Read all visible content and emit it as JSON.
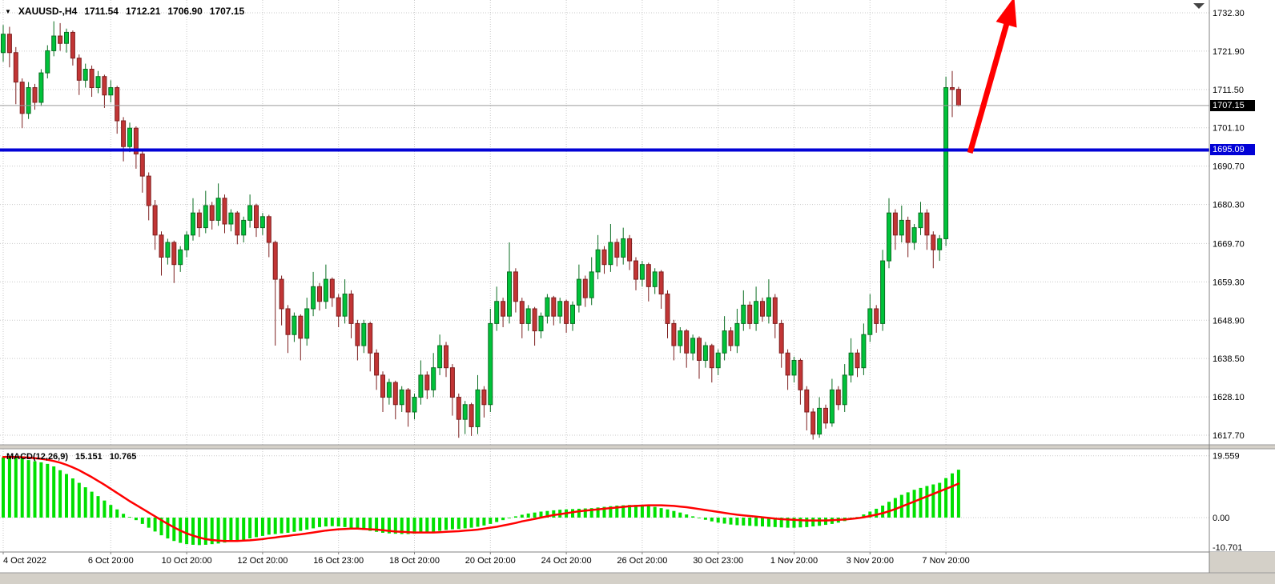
{
  "header": {
    "dropdown_icon": "▼",
    "symbol": "XAUUSD-,H4",
    "open": "1711.54",
    "high": "1712.21",
    "low": "1706.90",
    "close": "1707.15"
  },
  "macd": {
    "title": "MACD(12,26,9)",
    "value": "15.151",
    "signal": "10.765"
  },
  "price_axis": {
    "current_tag": "1707.15",
    "hline_tag": "1695.09",
    "labels": [
      "1732.30",
      "1721.90",
      "1711.50",
      "1701.10",
      "1690.70",
      "1680.30",
      "1669.70",
      "1659.30",
      "1648.90",
      "1638.50",
      "1628.10",
      "1617.70"
    ]
  },
  "macd_axis": {
    "labels": [
      "19.559",
      "0.00",
      "-10.701"
    ],
    "values": [
      19.559,
      0,
      -10.701
    ]
  },
  "time_axis": {
    "labels": [
      {
        "i": 0,
        "t": "4 Oct 2022"
      },
      {
        "i": 17,
        "t": "6 Oct 20:00"
      },
      {
        "i": 29,
        "t": "10 Oct 20:00"
      },
      {
        "i": 41,
        "t": "12 Oct 20:00"
      },
      {
        "i": 53,
        "t": "16 Oct 23:00"
      },
      {
        "i": 65,
        "t": "18 Oct 20:00"
      },
      {
        "i": 77,
        "t": "20 Oct 20:00"
      },
      {
        "i": 89,
        "t": "24 Oct 20:00"
      },
      {
        "i": 101,
        "t": "26 Oct 20:00"
      },
      {
        "i": 113,
        "t": "30 Oct 23:00"
      },
      {
        "i": 125,
        "t": "1 Nov 20:00"
      },
      {
        "i": 137,
        "t": "3 Nov 20:00"
      },
      {
        "i": 149,
        "t": "7 Nov 20:00"
      }
    ]
  },
  "chart_data": {
    "type": "candlestick",
    "title": "XAUUSD- H4 with MACD(12,26,9)",
    "price_gridlines": [
      1732.3,
      1721.9,
      1711.5,
      1701.1,
      1690.7,
      1680.3,
      1669.7,
      1659.3,
      1648.9,
      1638.5,
      1628.1,
      1617.7
    ],
    "candles": [
      [
        1721.5,
        1729,
        1719,
        1726.5
      ],
      [
        1726.5,
        1728.5,
        1717.5,
        1721.5
      ],
      [
        1721.5,
        1723,
        1707.5,
        1713.5
      ],
      [
        1713.5,
        1714.5,
        1701,
        1705
      ],
      [
        1705,
        1713.5,
        1703.5,
        1712
      ],
      [
        1712,
        1713,
        1706,
        1708
      ],
      [
        1708,
        1717,
        1707,
        1716
      ],
      [
        1716,
        1723.5,
        1714.5,
        1722
      ],
      [
        1722,
        1730,
        1720.5,
        1726
      ],
      [
        1726,
        1729.5,
        1722,
        1724
      ],
      [
        1724,
        1728,
        1721.5,
        1727
      ],
      [
        1727,
        1727.5,
        1718,
        1720
      ],
      [
        1720,
        1721,
        1710,
        1714
      ],
      [
        1714,
        1718.5,
        1712,
        1717
      ],
      [
        1717,
        1718,
        1709.5,
        1712
      ],
      [
        1712,
        1716.5,
        1710.5,
        1715
      ],
      [
        1715,
        1715.5,
        1706.5,
        1710
      ],
      [
        1710,
        1714,
        1708,
        1712
      ],
      [
        1712,
        1712.5,
        1699.5,
        1703
      ],
      [
        1703,
        1704,
        1692,
        1696
      ],
      [
        1696,
        1702.5,
        1694.5,
        1701
      ],
      [
        1701,
        1701.5,
        1690,
        1694
      ],
      [
        1694,
        1695,
        1683.5,
        1688
      ],
      [
        1688,
        1689,
        1676,
        1680
      ],
      [
        1680,
        1681.5,
        1668,
        1672
      ],
      [
        1672,
        1673,
        1661,
        1666
      ],
      [
        1666,
        1671,
        1664,
        1670
      ],
      [
        1670,
        1670.5,
        1659,
        1664
      ],
      [
        1664,
        1669,
        1662,
        1668
      ],
      [
        1668,
        1673,
        1666,
        1672
      ],
      [
        1672,
        1682,
        1670.5,
        1678
      ],
      [
        1678,
        1679,
        1671.5,
        1674
      ],
      [
        1674,
        1684,
        1672.5,
        1680
      ],
      [
        1680,
        1681,
        1673.5,
        1676
      ],
      [
        1676,
        1686,
        1674.5,
        1682
      ],
      [
        1682,
        1683,
        1672.5,
        1675
      ],
      [
        1675,
        1679,
        1673,
        1678
      ],
      [
        1678,
        1678.5,
        1669.5,
        1672
      ],
      [
        1672,
        1677,
        1670,
        1676
      ],
      [
        1676,
        1683,
        1674,
        1680
      ],
      [
        1680,
        1680.5,
        1671.5,
        1674
      ],
      [
        1674,
        1678,
        1672,
        1677
      ],
      [
        1677,
        1677.5,
        1666,
        1670
      ],
      [
        1670,
        1670.5,
        1642,
        1660
      ],
      [
        1660,
        1661,
        1647.5,
        1652
      ],
      [
        1652,
        1653,
        1640,
        1645
      ],
      [
        1645,
        1651,
        1643,
        1650
      ],
      [
        1650,
        1650.5,
        1638,
        1644
      ],
      [
        1644,
        1655,
        1642,
        1652
      ],
      [
        1652,
        1662,
        1650,
        1658
      ],
      [
        1658,
        1659,
        1651.5,
        1654
      ],
      [
        1654,
        1664,
        1652,
        1660
      ],
      [
        1660,
        1660.5,
        1652.5,
        1655
      ],
      [
        1655,
        1656,
        1647,
        1650
      ],
      [
        1650,
        1660,
        1648,
        1656
      ],
      [
        1656,
        1657,
        1644,
        1648
      ],
      [
        1648,
        1649,
        1638,
        1642
      ],
      [
        1642,
        1649,
        1640,
        1648
      ],
      [
        1648,
        1648.5,
        1635,
        1640
      ],
      [
        1640,
        1641,
        1630,
        1634
      ],
      [
        1634,
        1635,
        1624,
        1628
      ],
      [
        1628,
        1633,
        1626,
        1632
      ],
      [
        1632,
        1632.5,
        1622,
        1626
      ],
      [
        1626,
        1631,
        1624,
        1630
      ],
      [
        1630,
        1630.5,
        1620,
        1624
      ],
      [
        1624,
        1629,
        1622,
        1628
      ],
      [
        1628,
        1638,
        1626,
        1634
      ],
      [
        1634,
        1635,
        1627.5,
        1630
      ],
      [
        1630,
        1640,
        1628,
        1636
      ],
      [
        1636,
        1645,
        1634,
        1642
      ],
      [
        1642,
        1643,
        1633.5,
        1636
      ],
      [
        1636,
        1637,
        1623,
        1628
      ],
      [
        1628,
        1629,
        1617,
        1622
      ],
      [
        1622,
        1627,
        1618,
        1626
      ],
      [
        1626,
        1626.5,
        1617.5,
        1620
      ],
      [
        1620,
        1634,
        1618,
        1630
      ],
      [
        1630,
        1631,
        1622.5,
        1626
      ],
      [
        1626,
        1652,
        1624,
        1648
      ],
      [
        1648,
        1658,
        1646,
        1654
      ],
      [
        1654,
        1655,
        1647,
        1650
      ],
      [
        1650,
        1670,
        1648,
        1662
      ],
      [
        1662,
        1663,
        1651,
        1654
      ],
      [
        1654,
        1655,
        1644,
        1648
      ],
      [
        1648,
        1653,
        1646,
        1652
      ],
      [
        1652,
        1652.5,
        1642,
        1646
      ],
      [
        1646,
        1651,
        1644,
        1650
      ],
      [
        1650,
        1656,
        1648,
        1655
      ],
      [
        1655,
        1655.5,
        1647.5,
        1650
      ],
      [
        1650,
        1655,
        1648,
        1654
      ],
      [
        1654,
        1654.5,
        1645.5,
        1648
      ],
      [
        1648,
        1654,
        1646,
        1653
      ],
      [
        1653,
        1664,
        1651,
        1660
      ],
      [
        1660,
        1661,
        1652.5,
        1655
      ],
      [
        1655,
        1666,
        1653,
        1662
      ],
      [
        1662,
        1672,
        1660,
        1668
      ],
      [
        1668,
        1669,
        1661.5,
        1664
      ],
      [
        1664,
        1675,
        1662,
        1670
      ],
      [
        1670,
        1671,
        1663.5,
        1666
      ],
      [
        1666,
        1674,
        1664,
        1671
      ],
      [
        1671,
        1672,
        1662.5,
        1665
      ],
      [
        1665,
        1666,
        1657,
        1660
      ],
      [
        1660,
        1665,
        1658,
        1664
      ],
      [
        1664,
        1664.5,
        1654,
        1658
      ],
      [
        1658,
        1663,
        1656,
        1662
      ],
      [
        1662,
        1662.5,
        1652,
        1656
      ],
      [
        1656,
        1657,
        1644,
        1648
      ],
      [
        1648,
        1649,
        1638,
        1642
      ],
      [
        1642,
        1647,
        1640,
        1646
      ],
      [
        1646,
        1646.5,
        1636,
        1640
      ],
      [
        1640,
        1645,
        1638,
        1644
      ],
      [
        1644,
        1644.5,
        1633,
        1638
      ],
      [
        1638,
        1643,
        1636,
        1642
      ],
      [
        1642,
        1642.5,
        1632,
        1636
      ],
      [
        1636,
        1641,
        1634,
        1640
      ],
      [
        1640,
        1650,
        1638,
        1646
      ],
      [
        1646,
        1647,
        1640.5,
        1642
      ],
      [
        1642,
        1652,
        1640,
        1648
      ],
      [
        1648,
        1657,
        1646,
        1653
      ],
      [
        1653,
        1654,
        1646.5,
        1648
      ],
      [
        1648,
        1658,
        1646,
        1654
      ],
      [
        1654,
        1655,
        1648.5,
        1650
      ],
      [
        1650,
        1660,
        1648,
        1655
      ],
      [
        1655,
        1656,
        1644,
        1648
      ],
      [
        1648,
        1649,
        1636,
        1640
      ],
      [
        1640,
        1641,
        1630,
        1634
      ],
      [
        1634,
        1639,
        1632,
        1638
      ],
      [
        1638,
        1638.5,
        1626,
        1630
      ],
      [
        1630,
        1631,
        1619,
        1624
      ],
      [
        1624,
        1625,
        1616.5,
        1618
      ],
      [
        1618,
        1628,
        1617,
        1625
      ],
      [
        1625,
        1626,
        1619.5,
        1621
      ],
      [
        1621,
        1633,
        1620,
        1630
      ],
      [
        1630,
        1631,
        1624.5,
        1626
      ],
      [
        1626,
        1637,
        1624,
        1634
      ],
      [
        1634,
        1644,
        1632,
        1640
      ],
      [
        1640,
        1641,
        1633.5,
        1636
      ],
      [
        1636,
        1648,
        1634,
        1645
      ],
      [
        1645,
        1656,
        1643,
        1652
      ],
      [
        1652,
        1653,
        1645.5,
        1648
      ],
      [
        1648,
        1668,
        1646,
        1665
      ],
      [
        1665,
        1682,
        1663,
        1678
      ],
      [
        1678,
        1679,
        1668,
        1672
      ],
      [
        1672,
        1680,
        1670,
        1676
      ],
      [
        1676,
        1677,
        1666,
        1670
      ],
      [
        1670,
        1675,
        1668,
        1674
      ],
      [
        1674,
        1681,
        1672,
        1678
      ],
      [
        1678,
        1679,
        1668,
        1672
      ],
      [
        1672,
        1673,
        1663,
        1668
      ],
      [
        1668,
        1672,
        1665,
        1671
      ],
      [
        1671,
        1715,
        1669,
        1712
      ],
      [
        1712,
        1716.5,
        1704,
        1711.5
      ],
      [
        1711.54,
        1712.21,
        1706.9,
        1707.15
      ]
    ],
    "macd": {
      "params": "12,26,9",
      "histogram": [
        19,
        19.4,
        19.2,
        18.8,
        18.2,
        17.8,
        17.5,
        17,
        16.2,
        15,
        13.8,
        12.4,
        11,
        9.6,
        8.2,
        6.8,
        5.4,
        4,
        2.6,
        1.2,
        0.2,
        -0.8,
        -2,
        -3.2,
        -4.4,
        -5.6,
        -6.6,
        -7.4,
        -8,
        -8.4,
        -8.6,
        -8.7,
        -8.6,
        -8.4,
        -8.2,
        -7.9,
        -7.6,
        -7.3,
        -7,
        -6.6,
        -6.2,
        -5.8,
        -5.4,
        -5.2,
        -5,
        -4.8,
        -4.5,
        -4.2,
        -3.8,
        -3.4,
        -3,
        -2.8,
        -2.7,
        -2.8,
        -3,
        -3.3,
        -3.6,
        -3.9,
        -4.2,
        -4.5,
        -4.8,
        -5,
        -5.1,
        -5.2,
        -5.2,
        -5.1,
        -4.9,
        -4.7,
        -4.5,
        -4.2,
        -3.9,
        -3.7,
        -3.6,
        -3.4,
        -3.2,
        -2.9,
        -2.5,
        -2,
        -1.4,
        -0.8,
        -0.2,
        0.4,
        0.9,
        1.3,
        1.6,
        1.9,
        2.1,
        2.3,
        2.5,
        2.6,
        2.7,
        2.8,
        2.9,
        3,
        3.2,
        3.4,
        3.6,
        3.8,
        3.9,
        4,
        4,
        3.9,
        3.7,
        3.4,
        3,
        2.6,
        2.1,
        1.6,
        1,
        0.4,
        -0.2,
        -0.7,
        -1.2,
        -1.6,
        -1.9,
        -2.2,
        -2.4,
        -2.5,
        -2.6,
        -2.7,
        -2.8,
        -2.9,
        -3,
        -3.1,
        -3.2,
        -3.2,
        -3.1,
        -3,
        -2.8,
        -2.6,
        -2.3,
        -2,
        -1.6,
        -1.1,
        -0.5,
        0.2,
        1,
        1.9,
        2.8,
        3.8,
        5,
        6.2,
        7.2,
        8,
        8.8,
        9.4,
        10,
        10.5,
        11,
        12.5,
        14,
        15.151
      ],
      "signal": [
        19.2,
        19.2,
        19.2,
        19.1,
        19,
        18.8,
        18.6,
        18.3,
        17.9,
        17.4,
        16.7,
        15.9,
        15,
        13.9,
        12.8,
        11.6,
        10.4,
        9.1,
        7.8,
        6.5,
        5.2,
        4,
        2.8,
        1.6,
        0.4,
        -0.8,
        -2,
        -3.1,
        -4.1,
        -5,
        -5.7,
        -6.3,
        -6.8,
        -7.1,
        -7.3,
        -7.4,
        -7.4,
        -7.4,
        -7.3,
        -7.2,
        -7,
        -6.8,
        -6.5,
        -6.3,
        -6,
        -5.8,
        -5.5,
        -5.3,
        -5,
        -4.7,
        -4.4,
        -4.1,
        -3.9,
        -3.7,
        -3.6,
        -3.5,
        -3.5,
        -3.6,
        -3.7,
        -3.8,
        -4,
        -4.2,
        -4.4,
        -4.5,
        -4.6,
        -4.7,
        -4.7,
        -4.7,
        -4.7,
        -4.6,
        -4.5,
        -4.4,
        -4.3,
        -4.1,
        -4,
        -3.8,
        -3.5,
        -3.2,
        -2.9,
        -2.5,
        -2.1,
        -1.7,
        -1.2,
        -0.8,
        -0.4,
        0,
        0.4,
        0.8,
        1.1,
        1.4,
        1.7,
        2,
        2.2,
        2.4,
        2.6,
        2.8,
        3,
        3.2,
        3.4,
        3.6,
        3.7,
        3.8,
        3.9,
        3.9,
        3.9,
        3.8,
        3.7,
        3.5,
        3.3,
        3,
        2.7,
        2.4,
        2.1,
        1.8,
        1.5,
        1.2,
        0.9,
        0.7,
        0.5,
        0.3,
        0.1,
        -0.1,
        -0.3,
        -0.5,
        -0.6,
        -0.7,
        -0.8,
        -0.9,
        -0.9,
        -0.9,
        -0.9,
        -0.8,
        -0.7,
        -0.6,
        -0.4,
        -0.2,
        0.1,
        0.5,
        0.9,
        1.4,
        2,
        2.7,
        3.5,
        4.3,
        5.1,
        5.9,
        6.7,
        7.5,
        8.3,
        9.1,
        9.9,
        10.765
      ]
    },
    "annotations": {
      "hline_price": 1695.09,
      "current_price": 1707.15,
      "arrow": {
        "x1_index": 152.8,
        "y1_price": 1694.3,
        "x2_index": 159.8,
        "y2_price": 1736.6
      }
    },
    "colors": {
      "up_fill": "#00c23a",
      "up_stroke": "#0a6e22",
      "down_fill": "#c23535",
      "down_stroke": "#7d1f1f",
      "histogram": "#00e000",
      "signal": "#ff0000",
      "hline": "#0202d6",
      "grid": "#c9c9c9",
      "arrow": "#ff0000",
      "current_price_line": "#9b9b9b",
      "chrome": "#d4d0c8",
      "chrome_edge": "#9a9a9a",
      "axis_line": "#808080"
    }
  }
}
